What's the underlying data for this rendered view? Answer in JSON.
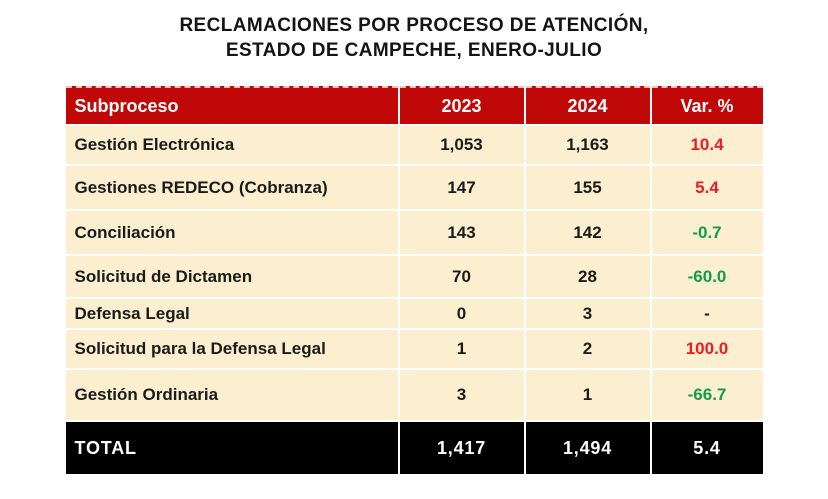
{
  "title": {
    "line1": "RECLAMACIONES POR PROCESO DE ATENCIÓN,",
    "line2": "ESTADO DE CAMPECHE, ENERO-JULIO"
  },
  "table": {
    "columns": [
      "Subproceso",
      "2023",
      "2024",
      "Var. %"
    ],
    "rows": [
      {
        "subproceso": "Gestión Electrónica",
        "y2023": "1,053",
        "y2024": "1,163",
        "var": "10.4",
        "var_color": "red"
      },
      {
        "subproceso": "Gestiones REDECO (Cobranza)",
        "y2023": "147",
        "y2024": "155",
        "var": "5.4",
        "var_color": "red"
      },
      {
        "subproceso": "Conciliación",
        "y2023": "143",
        "y2024": "142",
        "var": "-0.7",
        "var_color": "green"
      },
      {
        "subproceso": "Solicitud de Dictamen",
        "y2023": "70",
        "y2024": "28",
        "var": "-60.0",
        "var_color": "green"
      },
      {
        "subproceso": "Defensa Legal",
        "y2023": "0",
        "y2024": "3",
        "var": "-",
        "var_color": "dark"
      },
      {
        "subproceso": "Solicitud para la Defensa Legal",
        "y2023": "1",
        "y2024": "2",
        "var": "100.0",
        "var_color": "red"
      },
      {
        "subproceso": "Gestión Ordinaria",
        "y2023": "3",
        "y2024": "1",
        "var": "-66.7",
        "var_color": "green"
      }
    ],
    "total": {
      "label": "TOTAL",
      "y2023": "1,417",
      "y2024": "1,494",
      "var": "5.4"
    }
  },
  "colors": {
    "header_bg": "#C00808",
    "header_text": "#ffffff",
    "row_bg": "#FBEFD0",
    "total_bg": "#000000",
    "total_text": "#ffffff",
    "var_red": "#ED1C24",
    "var_green": "#119C4B",
    "var_dark": "#1b1b1b",
    "body_text": "#1b1b1b",
    "title_text": "#141414"
  },
  "chart_data": {
    "type": "table",
    "title": "RECLAMACIONES POR PROCESO DE ATENCIÓN, ESTADO DE CAMPECHE, ENERO-JULIO",
    "columns": [
      "Subproceso",
      "2023",
      "2024",
      "Var. %"
    ],
    "rows": [
      [
        "Gestión Electrónica",
        1053,
        1163,
        10.4
      ],
      [
        "Gestiones REDECO (Cobranza)",
        147,
        155,
        5.4
      ],
      [
        "Conciliación",
        143,
        142,
        -0.7
      ],
      [
        "Solicitud de Dictamen",
        70,
        28,
        -60.0
      ],
      [
        "Defensa Legal",
        0,
        3,
        null
      ],
      [
        "Solicitud para la Defensa Legal",
        1,
        2,
        100.0
      ],
      [
        "Gestión Ordinaria",
        3,
        1,
        -66.7
      ],
      [
        "TOTAL",
        1417,
        1494,
        5.4
      ]
    ]
  }
}
